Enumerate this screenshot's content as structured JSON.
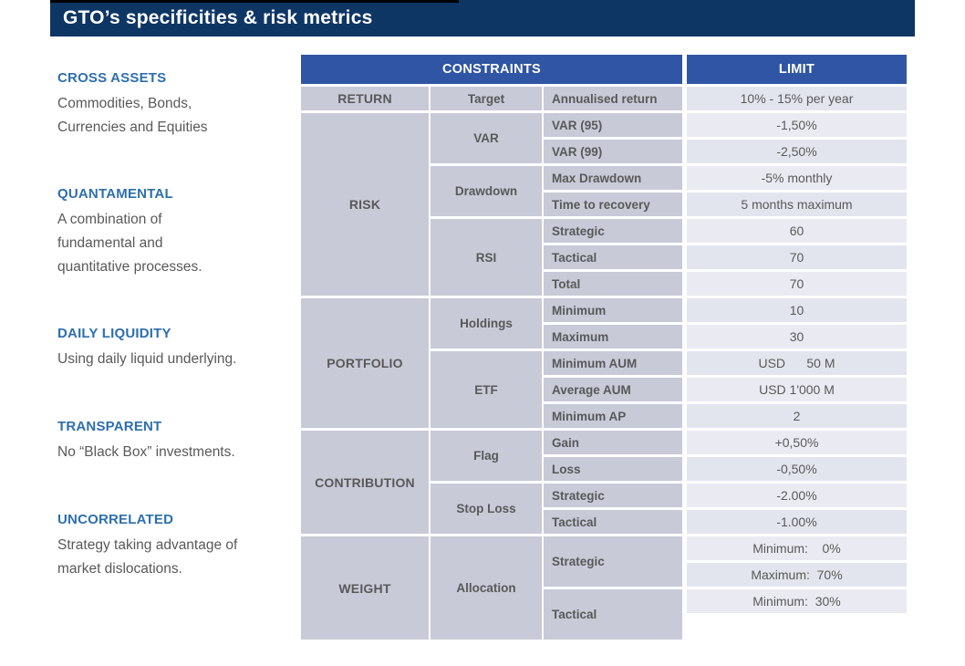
{
  "title": "GTO’s specificities & risk metrics",
  "colors": {
    "title_bar_navy": "#0e3665",
    "table_header_blue": "#2f55a4",
    "cell_gray": "#c8cad8",
    "limit_cell_light": "#eaebf2",
    "limit_cell_dark": "#e3e5ee",
    "feature_heading_blue": "#2e6fae",
    "body_text_gray": "#595959"
  },
  "sidebar": {
    "sections": [
      {
        "heading": "CROSS ASSETS",
        "body": "Commodities, Bonds,\nCurrencies and Equities"
      },
      {
        "heading": "QUANTAMENTAL",
        "body": "A combination of\nfundamental and\nquantitative processes."
      },
      {
        "heading": "DAILY LIQUIDITY",
        "body": "Using daily liquid underlying."
      },
      {
        "heading": "TRANSPARENT",
        "body": "No “Black Box” investments."
      },
      {
        "heading": "UNCORRELATED",
        "body": "Strategy taking advantage of\nmarket dislocations."
      }
    ]
  },
  "table": {
    "headers": {
      "constraints": "CONSTRAINTS",
      "limit": "LIMIT"
    },
    "categories": [
      {
        "text": "RETURN",
        "row": 1,
        "span": 1
      },
      {
        "text": "RISK",
        "row": 2,
        "span": 7
      },
      {
        "text": "PORTFOLIO",
        "row": 9,
        "span": 5
      },
      {
        "text": "CONTRIBUTION",
        "row": 14,
        "span": 4
      },
      {
        "text": "WEIGHT",
        "row": 18,
        "span": 4
      }
    ],
    "subcategories": [
      {
        "text": "Target",
        "row": 1,
        "span": 1
      },
      {
        "text": "VAR",
        "row": 2,
        "span": 2
      },
      {
        "text": "Drawdown",
        "row": 4,
        "span": 2
      },
      {
        "text": "RSI",
        "row": 6,
        "span": 3
      },
      {
        "text": "Holdings",
        "row": 9,
        "span": 2
      },
      {
        "text": "ETF",
        "row": 11,
        "span": 3
      },
      {
        "text": "Flag",
        "row": 14,
        "span": 2
      },
      {
        "text": "Stop Loss",
        "row": 16,
        "span": 2
      },
      {
        "text": "Allocation",
        "row": 18,
        "span": 4
      }
    ],
    "metrics": [
      {
        "text": "Annualised return",
        "row": 1,
        "span": 1
      },
      {
        "text": "VAR (95)",
        "row": 2,
        "span": 1
      },
      {
        "text": "VAR (99)",
        "row": 3,
        "span": 1
      },
      {
        "text": "Max Drawdown",
        "row": 4,
        "span": 1
      },
      {
        "text": "Time to recovery",
        "row": 5,
        "span": 1
      },
      {
        "text": "Strategic",
        "row": 6,
        "span": 1
      },
      {
        "text": "Tactical",
        "row": 7,
        "span": 1
      },
      {
        "text": "Total",
        "row": 8,
        "span": 1
      },
      {
        "text": "Minimum",
        "row": 9,
        "span": 1
      },
      {
        "text": "Maximum",
        "row": 10,
        "span": 1
      },
      {
        "text": "Minimum AUM",
        "row": 11,
        "span": 1
      },
      {
        "text": "Average AUM",
        "row": 12,
        "span": 1
      },
      {
        "text": "Minimum AP",
        "row": 13,
        "span": 1
      },
      {
        "text": "Gain",
        "row": 14,
        "span": 1
      },
      {
        "text": "Loss",
        "row": 15,
        "span": 1
      },
      {
        "text": "Strategic",
        "row": 16,
        "span": 1
      },
      {
        "text": "Tactical",
        "row": 17,
        "span": 1
      },
      {
        "text": "Strategic",
        "row": 18,
        "span": 2
      },
      {
        "text": "Tactical",
        "row": 20,
        "span": 2
      }
    ],
    "limits": [
      {
        "text": "10% - 15% per year",
        "row": 1
      },
      {
        "text": "-1,50%",
        "row": 2
      },
      {
        "text": "-2,50%",
        "row": 3
      },
      {
        "text": "-5% monthly",
        "row": 4
      },
      {
        "text": "5 months maximum",
        "row": 5
      },
      {
        "text": "60",
        "row": 6
      },
      {
        "text": "70",
        "row": 7
      },
      {
        "text": "70",
        "row": 8
      },
      {
        "text": "10",
        "row": 9
      },
      {
        "text": "30",
        "row": 10
      },
      {
        "text": "USD      50 M",
        "row": 11
      },
      {
        "text": "USD 1'000 M",
        "row": 12
      },
      {
        "text": "2",
        "row": 13
      },
      {
        "text": "+0,50%",
        "row": 14
      },
      {
        "text": "-0,50%",
        "row": 15
      },
      {
        "text": "-2.00%",
        "row": 16
      },
      {
        "text": "-1.00%",
        "row": 17
      },
      {
        "text": "Minimum:    0%",
        "row": 18
      },
      {
        "text": "Maximum:  70%",
        "row": 19
      },
      {
        "text": "Minimum:  30%",
        "row": 20
      }
    ]
  }
}
